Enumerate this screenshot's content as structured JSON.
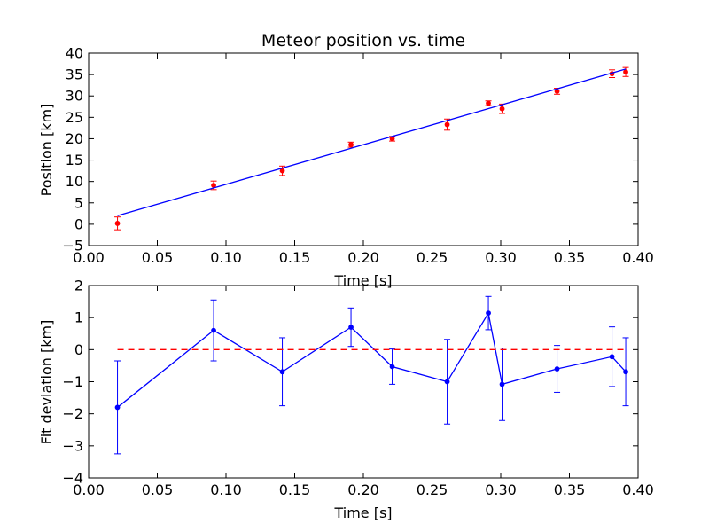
{
  "chart_data": [
    {
      "type": "scatter",
      "title": "Meteor position vs. time",
      "xlabel": "Time [s]",
      "ylabel": "Position [km]",
      "xlim": [
        0.0,
        0.4
      ],
      "ylim": [
        -5,
        40
      ],
      "xticks": [
        "0.00",
        "0.05",
        "0.10",
        "0.15",
        "0.20",
        "0.25",
        "0.30",
        "0.35",
        "0.40"
      ],
      "xtick_values": [
        0.0,
        0.05,
        0.1,
        0.15,
        0.2,
        0.25,
        0.3,
        0.35,
        0.4
      ],
      "yticks": [
        "−5",
        "0",
        "5",
        "10",
        "15",
        "20",
        "25",
        "30",
        "35",
        "40"
      ],
      "ytick_values": [
        -5,
        0,
        5,
        10,
        15,
        20,
        25,
        30,
        35,
        40
      ],
      "grid": false,
      "series": [
        {
          "type": "scatter-errorbar",
          "color": "#ff0000",
          "x": [
            0.021,
            0.091,
            0.141,
            0.191,
            0.221,
            0.261,
            0.291,
            0.301,
            0.341,
            0.381,
            0.391
          ],
          "y": [
            0.2,
            9.1,
            12.5,
            18.6,
            20.0,
            23.3,
            28.3,
            27.0,
            31.1,
            35.2,
            35.6
          ],
          "yerr": [
            1.5,
            1.0,
            1.1,
            0.6,
            0.55,
            1.3,
            0.55,
            1.1,
            0.7,
            0.9,
            1.05
          ]
        },
        {
          "type": "line",
          "color": "#0000ff",
          "x": [
            0.021,
            0.391
          ],
          "y": [
            2.0,
            36.3
          ]
        }
      ]
    },
    {
      "type": "line",
      "title": "",
      "xlabel": "Time [s]",
      "ylabel": "Fit deviation [km]",
      "xlim": [
        0.0,
        0.4
      ],
      "ylim": [
        -4,
        2
      ],
      "xticks": [
        "0.00",
        "0.05",
        "0.10",
        "0.15",
        "0.20",
        "0.25",
        "0.30",
        "0.35",
        "0.40"
      ],
      "xtick_values": [
        0.0,
        0.05,
        0.1,
        0.15,
        0.2,
        0.25,
        0.3,
        0.35,
        0.4
      ],
      "yticks": [
        "−4",
        "−3",
        "−2",
        "−1",
        "0",
        "1",
        "2"
      ],
      "ytick_values": [
        -4,
        -3,
        -2,
        -1,
        0,
        1,
        2
      ],
      "grid": false,
      "series": [
        {
          "type": "line-errorbar",
          "color": "#0000ff",
          "x": [
            0.021,
            0.091,
            0.141,
            0.191,
            0.221,
            0.261,
            0.291,
            0.301,
            0.341,
            0.381,
            0.391
          ],
          "y": [
            -1.8,
            0.6,
            -0.69,
            0.7,
            -0.53,
            -1.0,
            1.14,
            -1.08,
            -0.6,
            -0.22,
            -0.69
          ],
          "yerr": [
            1.45,
            0.95,
            1.06,
            0.6,
            0.55,
            1.32,
            0.52,
            1.13,
            0.73,
            0.93,
            1.06
          ]
        },
        {
          "type": "reference-line",
          "style": "dashed",
          "color": "#ff0000",
          "x": [
            0.021,
            0.391
          ],
          "y": [
            0,
            0
          ]
        }
      ]
    }
  ]
}
